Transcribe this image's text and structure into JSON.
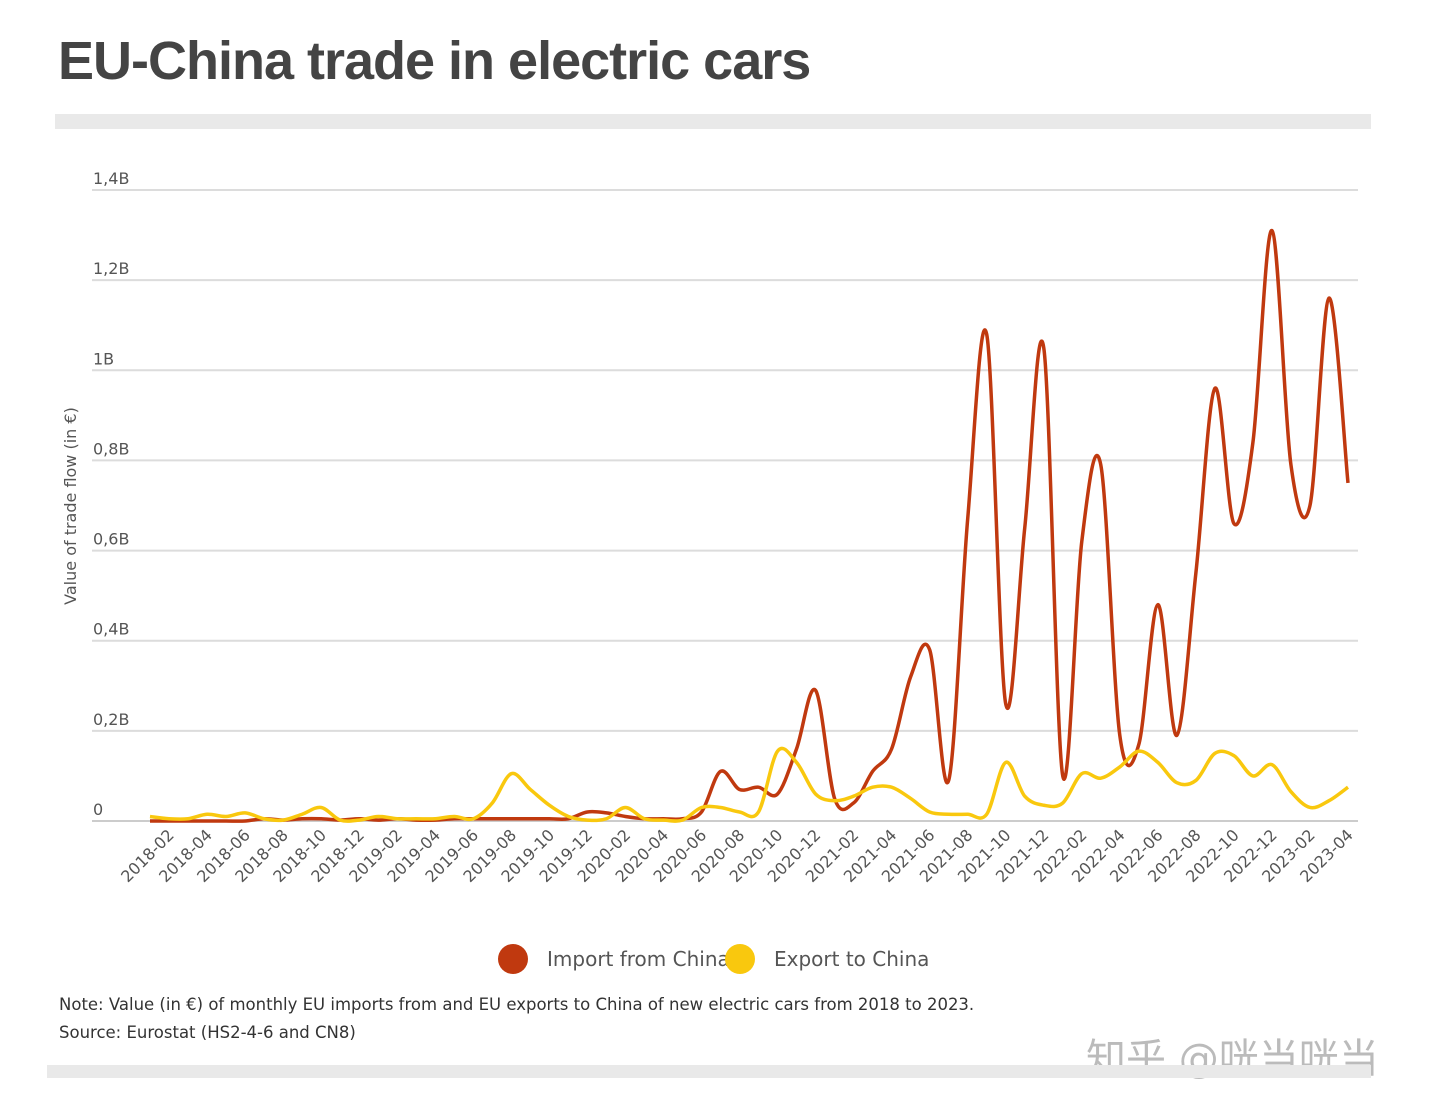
{
  "title": "EU-China trade in electric cars",
  "note": "Note: Value (in €) of monthly EU imports from and EU exports to China of new electric cars from 2018 to 2023.",
  "source": "Source: Eurostat (HS2-4-6 and CN8)",
  "watermark": "知乎 @咣当咣当",
  "chart_data": {
    "type": "line",
    "title": "EU-China trade in electric cars",
    "ylabel": "Value of trade flow (in €)",
    "xlabel": "",
    "ylim": [
      0,
      1.4
    ],
    "y_unit": "B",
    "yticks": [
      "0",
      "0,2B",
      "0,4B",
      "0,6B",
      "0,8B",
      "1B",
      "1,2B",
      "1,4B"
    ],
    "grid": true,
    "legend": "bottom",
    "x_start": "2018-01",
    "x_end": "2023-04",
    "xticks": [
      "2018-02",
      "2018-04",
      "2018-06",
      "2018-08",
      "2018-10",
      "2018-12",
      "2019-02",
      "2019-04",
      "2019-06",
      "2019-08",
      "2019-10",
      "2019-12",
      "2020-02",
      "2020-04",
      "2020-06",
      "2020-08",
      "2020-10",
      "2020-12",
      "2021-02",
      "2021-04",
      "2021-06",
      "2021-08",
      "2021-10",
      "2021-12",
      "2022-02",
      "2022-04",
      "2022-06",
      "2022-08",
      "2022-10",
      "2022-12",
      "2023-02",
      "2023-04"
    ],
    "series": [
      {
        "name": "Import from China",
        "color": "#c0390f",
        "values": [
          0,
          0,
          0,
          0,
          0,
          0,
          0.005,
          0.002,
          0.005,
          0.005,
          0.002,
          0.005,
          0.002,
          0.005,
          0.002,
          0.002,
          0.005,
          0.005,
          0.005,
          0.005,
          0.005,
          0.005,
          0.005,
          0.02,
          0.018,
          0.01,
          0.005,
          0.005,
          0.005,
          0.02,
          0.11,
          0.07,
          0.075,
          0.06,
          0.16,
          0.29,
          0.05,
          0.04,
          0.11,
          0.16,
          0.32,
          0.38,
          0.09,
          0.67,
          1.08,
          0.26,
          0.65,
          1.05,
          0.1,
          0.62,
          0.79,
          0.19,
          0.17,
          0.48,
          0.19,
          0.55,
          0.96,
          0.66,
          0.84,
          1.31,
          0.79,
          0.7,
          1.16,
          0.75
        ]
      },
      {
        "name": "Export to China",
        "color": "#f9c80e",
        "values": [
          0.01,
          0.005,
          0.005,
          0.015,
          0.01,
          0.018,
          0.005,
          0.002,
          0.015,
          0.03,
          0.002,
          0.002,
          0.01,
          0.005,
          0.005,
          0.005,
          0.01,
          0.005,
          0.04,
          0.105,
          0.07,
          0.035,
          0.01,
          0.002,
          0.005,
          0.03,
          0.005,
          0.002,
          0.002,
          0.03,
          0.03,
          0.02,
          0.02,
          0.155,
          0.13,
          0.06,
          0.045,
          0.055,
          0.075,
          0.075,
          0.05,
          0.02,
          0.015,
          0.015,
          0.015,
          0.13,
          0.055,
          0.035,
          0.04,
          0.105,
          0.095,
          0.12,
          0.155,
          0.13,
          0.085,
          0.09,
          0.15,
          0.145,
          0.1,
          0.125,
          0.065,
          0.03,
          0.045,
          0.075
        ]
      }
    ]
  }
}
